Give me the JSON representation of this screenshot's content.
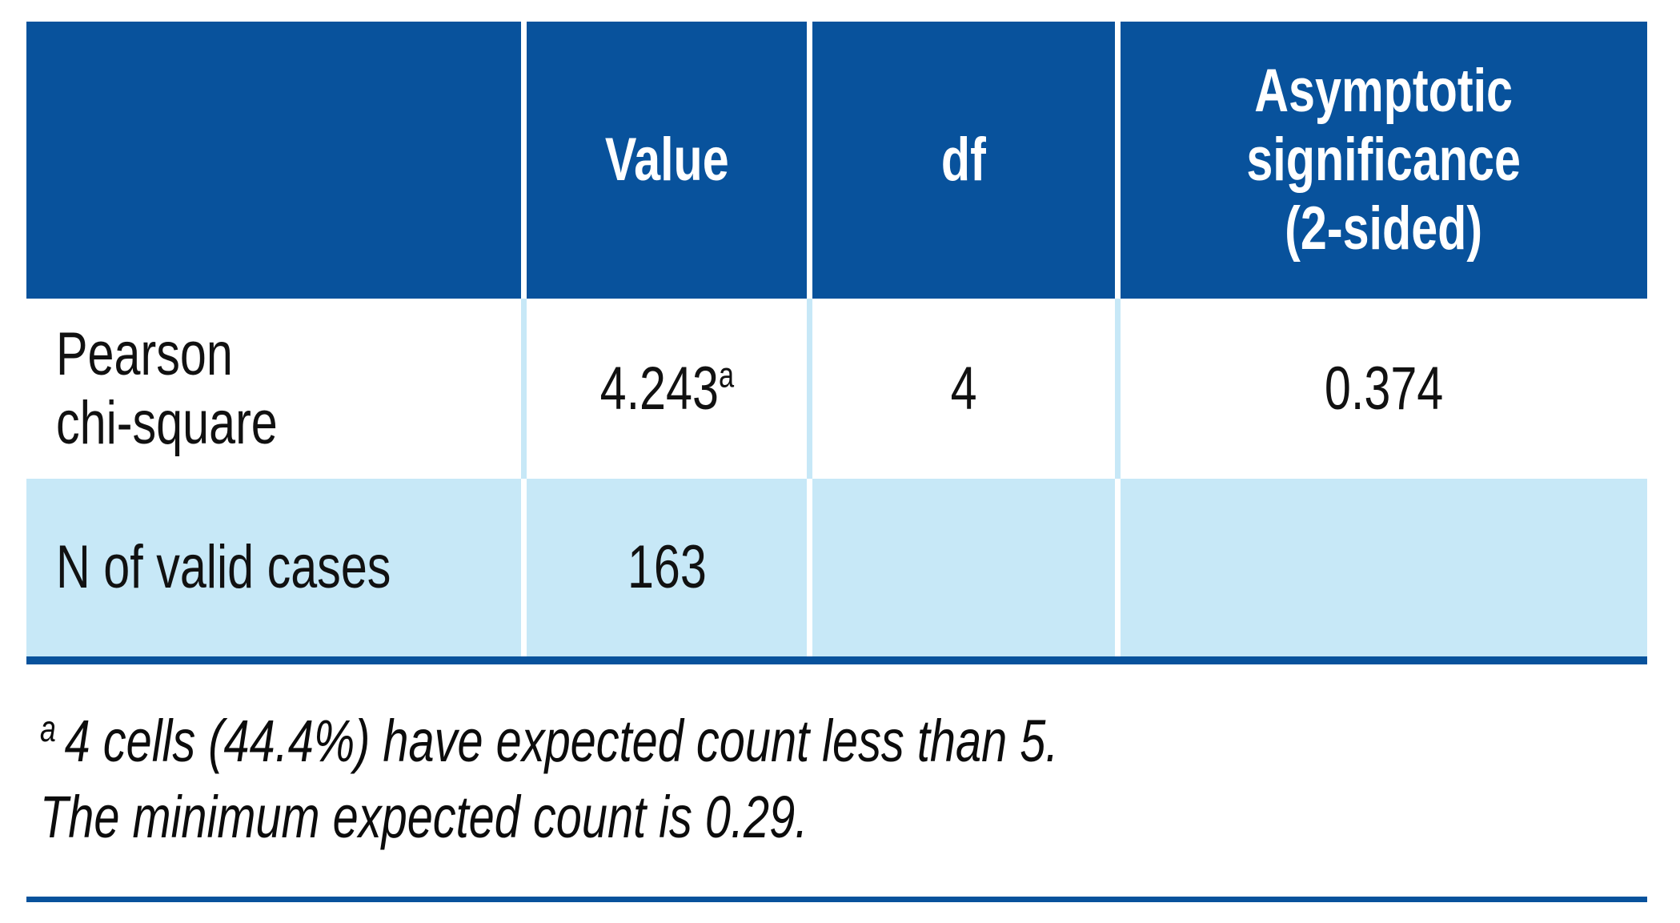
{
  "colors": {
    "header_blue": "#08529c",
    "light_blue": "#c7e8f7",
    "body_text": "#111111"
  },
  "chart_data": {
    "type": "table",
    "columns": [
      "",
      "Value",
      "df",
      "Asymptotic significance (2-sided)"
    ],
    "rows": [
      {
        "label": "Pearson chi-square",
        "value": "4.243",
        "value_footnote_marker": "a",
        "df": "4",
        "asymptotic_significance_2_sided": "0.374"
      },
      {
        "label": "N of valid cases",
        "value": "163",
        "value_footnote_marker": "",
        "df": "",
        "asymptotic_significance_2_sided": ""
      }
    ],
    "footnotes": [
      {
        "marker": "a",
        "text": "4 cells (44.4%) have expected count less than 5. The minimum expected count is 0.29."
      }
    ],
    "layout": "header row dark blue with white bold text; first data row white; second data row light blue; thick dark blue rule under table and thin dark blue rule at page bottom"
  },
  "table": {
    "header": {
      "col1": "",
      "col2": "Value",
      "col3": "df",
      "col4": "Asymptotic\nsignificance\n(2-sided)"
    },
    "row1": {
      "label": "Pearson\nchi-square",
      "value": "4.243",
      "sup": "a",
      "df": "4",
      "sig": "0.374"
    },
    "row2": {
      "label": "N of valid cases",
      "value": "163",
      "df": "",
      "sig": ""
    }
  },
  "footnote": {
    "marker": "a",
    "line1": "4 cells (44.4%) have expected count less than 5.",
    "line2": "The minimum expected count is 0.29."
  }
}
